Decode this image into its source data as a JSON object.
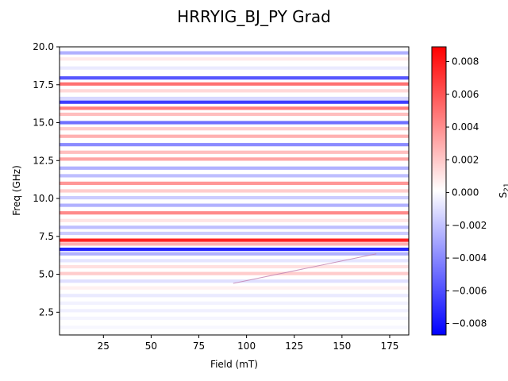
{
  "chart_data": {
    "type": "heatmap",
    "title": "HRRYIG_BJ_PY Grad",
    "xlabel": "Field (mT)",
    "ylabel": "Freq (GHz)",
    "xlim": [
      2,
      185
    ],
    "ylim": [
      1.0,
      20.0
    ],
    "xticks": [
      25,
      50,
      75,
      100,
      125,
      150,
      175
    ],
    "xtick_labels": [
      "25",
      "50",
      "75",
      "100",
      "125",
      "150",
      "175"
    ],
    "yticks": [
      2.5,
      5.0,
      7.5,
      10.0,
      12.5,
      15.0,
      17.5,
      20.0
    ],
    "ytick_labels": [
      "2.5",
      "5.0",
      "7.5",
      "10.0",
      "12.5",
      "15.0",
      "17.5",
      "20.0"
    ],
    "colorbar": {
      "label": "S21",
      "label_main": "S",
      "label_sub": "21",
      "colormap": "bwr",
      "vmin": -0.0087,
      "vmax": 0.0089,
      "ticks": [
        0.008,
        0.006,
        0.004,
        0.002,
        0.0,
        -0.002,
        -0.004,
        -0.006,
        -0.008
      ],
      "tick_labels": [
        "0.008",
        "0.006",
        "0.004",
        "0.002",
        "0.000",
        "−0.002",
        "−0.004",
        "−0.006",
        "−0.008"
      ]
    },
    "bands": [
      {
        "freq": 19.6,
        "value": -0.003
      },
      {
        "freq": 19.2,
        "value": 0.0008
      },
      {
        "freq": 18.6,
        "value": -0.0008
      },
      {
        "freq": 17.95,
        "value": -0.0065
      },
      {
        "freq": 17.55,
        "value": 0.0055
      },
      {
        "freq": 17.1,
        "value": 0.0015
      },
      {
        "freq": 16.6,
        "value": -0.0015
      },
      {
        "freq": 16.35,
        "value": -0.0075
      },
      {
        "freq": 15.95,
        "value": 0.005
      },
      {
        "freq": 15.55,
        "value": 0.0025
      },
      {
        "freq": 15.0,
        "value": -0.0055
      },
      {
        "freq": 14.6,
        "value": 0.002
      },
      {
        "freq": 14.1,
        "value": 0.003
      },
      {
        "freq": 13.55,
        "value": -0.0045
      },
      {
        "freq": 13.05,
        "value": 0.0025
      },
      {
        "freq": 12.6,
        "value": 0.0035
      },
      {
        "freq": 12.0,
        "value": -0.003
      },
      {
        "freq": 11.5,
        "value": -0.0025
      },
      {
        "freq": 11.0,
        "value": 0.004
      },
      {
        "freq": 10.5,
        "value": 0.002
      },
      {
        "freq": 10.05,
        "value": -0.002
      },
      {
        "freq": 9.55,
        "value": -0.003
      },
      {
        "freq": 9.05,
        "value": 0.0045
      },
      {
        "freq": 8.55,
        "value": 0.001
      },
      {
        "freq": 8.1,
        "value": -0.0025
      },
      {
        "freq": 7.7,
        "value": -0.002
      },
      {
        "freq": 7.25,
        "value": 0.0085
      },
      {
        "freq": 7.0,
        "value": 0.003
      },
      {
        "freq": 6.65,
        "value": -0.0085
      },
      {
        "freq": 6.35,
        "value": -0.003
      },
      {
        "freq": 5.9,
        "value": -0.001
      },
      {
        "freq": 5.5,
        "value": 0.0012
      },
      {
        "freq": 5.05,
        "value": 0.002
      },
      {
        "freq": 4.55,
        "value": -0.0012
      },
      {
        "freq": 4.1,
        "value": 0.0006
      },
      {
        "freq": 3.6,
        "value": -0.0008
      },
      {
        "freq": 3.1,
        "value": -0.0005
      },
      {
        "freq": 2.6,
        "value": -0.0006
      },
      {
        "freq": 2.1,
        "value": -0.0004
      },
      {
        "freq": 1.5,
        "value": -0.0003
      }
    ],
    "feature_line": {
      "points": [
        [
          93,
          4.4
        ],
        [
          168,
          6.35
        ]
      ],
      "value": 0.003
    }
  }
}
